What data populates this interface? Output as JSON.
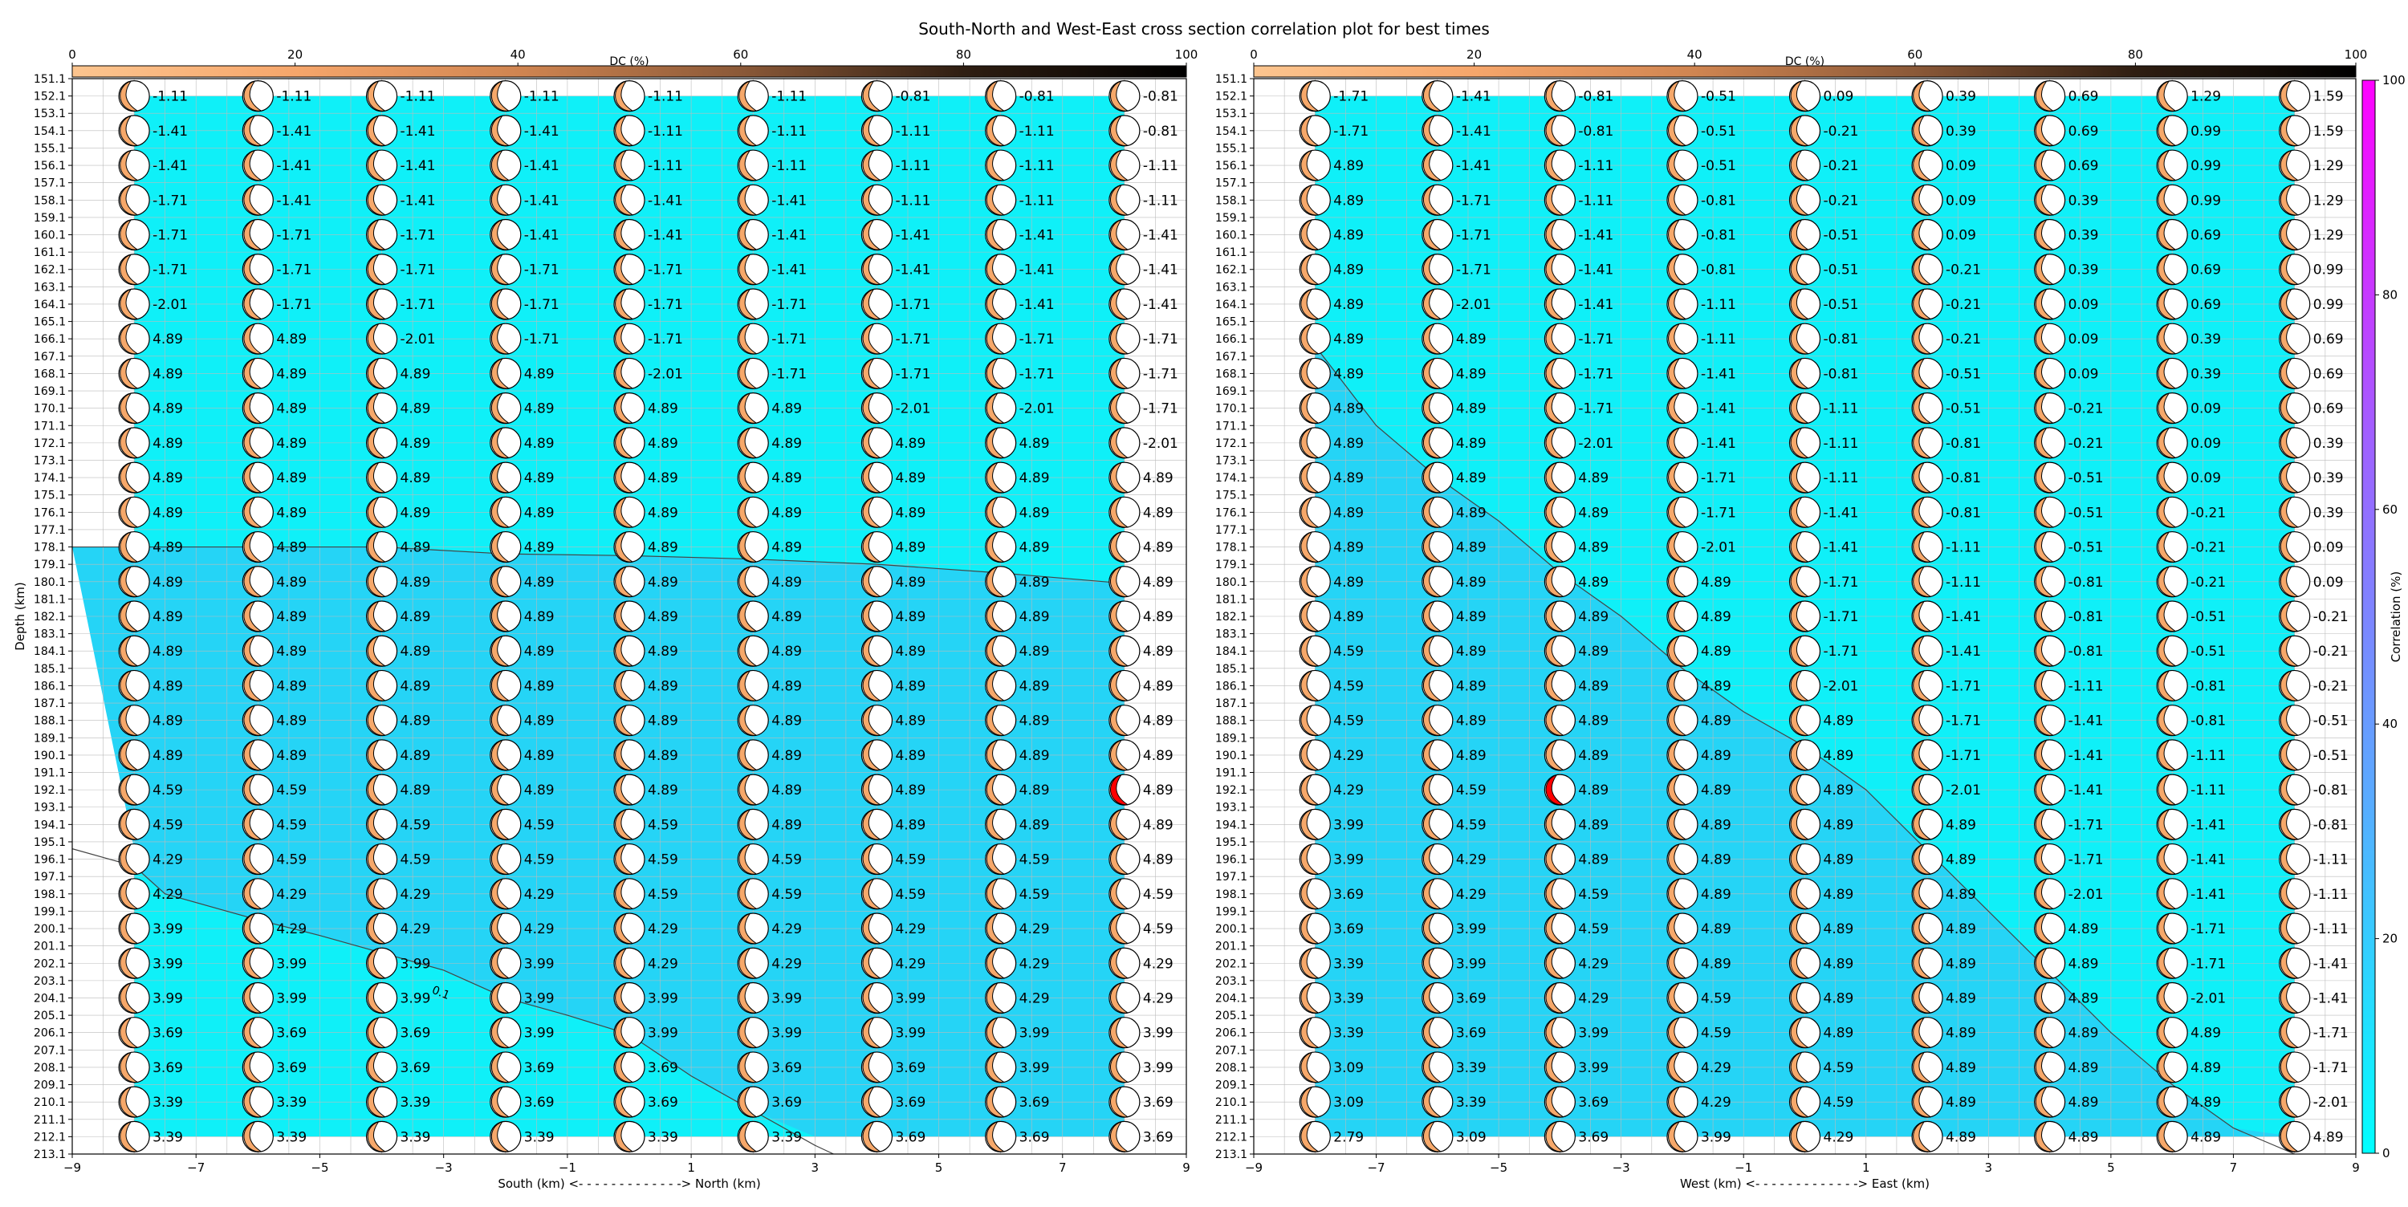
{
  "title": "South-North and West-East cross section correlation plot for best times",
  "colors": {
    "field": "#0ff0f8",
    "field_deep": "#25d4f6",
    "beachball_fill": "#f6a86a",
    "best": "#ff0000",
    "contour": "#444444",
    "grid": "#bbbbbb",
    "dc_bar": [
      "#fcc58f",
      "#f6a66b",
      "#d08551",
      "#8b5938",
      "#2f1e12",
      "#000000"
    ],
    "corr_bar": [
      "#00ffff",
      "#5aaaff",
      "#a060ff",
      "#ff00ff"
    ]
  },
  "dc_colorbar": {
    "label": "DC (%)",
    "ticks": [
      0,
      20,
      40,
      60,
      80,
      100
    ],
    "range": [
      0,
      100
    ]
  },
  "corr_colorbar": {
    "label": "Correlation (%)",
    "ticks": [
      0,
      20,
      40,
      60,
      80,
      100
    ],
    "range": [
      0,
      100
    ]
  },
  "chart_data": [
    {
      "type": "heatmap",
      "panel": "south-north",
      "xlabel": "South (km) <- - - - - - - - - - - - -> North (km)",
      "ylabel": "Depth (km)",
      "xlim": [
        -9,
        9
      ],
      "ylim": [
        213.1,
        151.1
      ],
      "xticks": [
        -9,
        -7,
        -5,
        -3,
        -1,
        1,
        3,
        5,
        7,
        9
      ],
      "yticks_start": 151.1,
      "yticks_step": 1,
      "yticks_count": 63,
      "depths": [
        152.1,
        154.1,
        156.1,
        158.1,
        160.1,
        162.1,
        164.1,
        166.1,
        168.1,
        170.1,
        172.1,
        174.1,
        176.1,
        178.1,
        180.1,
        182.1,
        184.1,
        186.1,
        188.1,
        190.1,
        192.1,
        194.1,
        196.1,
        198.1,
        200.1,
        202.1,
        204.1,
        206.1,
        208.1,
        210.1,
        212.1
      ],
      "positions": [
        -8,
        -6,
        -4,
        -2,
        0,
        2,
        4,
        6,
        8
      ],
      "best": {
        "x": 8,
        "depth": 192.1
      },
      "contour_label": "0.1",
      "contour": [
        [
          -9,
          178.1
        ],
        [
          -8,
          178.1
        ],
        [
          -6,
          178.1
        ],
        [
          -4,
          178.1
        ],
        [
          -2,
          178.5
        ],
        [
          0,
          178.6
        ],
        [
          2,
          178.8
        ],
        [
          4,
          179.1
        ],
        [
          6,
          179.6
        ],
        [
          8,
          180.2
        ]
      ],
      "contour2": [
        [
          -9,
          195.5
        ],
        [
          -8,
          196.5
        ],
        [
          -7.5,
          198.1
        ],
        [
          -6,
          199.6
        ],
        [
          -5,
          200.5
        ],
        [
          -4,
          201.5
        ],
        [
          -3,
          202.5
        ],
        [
          -2,
          204.1
        ],
        [
          -1,
          205.1
        ],
        [
          0,
          206.2
        ],
        [
          1,
          208.6
        ],
        [
          2,
          210.6
        ],
        [
          3,
          212.6
        ],
        [
          3.3,
          213.1
        ]
      ],
      "rows": [
        [
          "-1.11",
          "-1.11",
          "-1.11",
          "-1.11",
          "-1.11",
          "-1.11",
          "-0.81",
          "-0.81",
          "-0.81"
        ],
        [
          "-1.41",
          "-1.41",
          "-1.41",
          "-1.41",
          "-1.11",
          "-1.11",
          "-1.11",
          "-1.11",
          "-0.81"
        ],
        [
          "-1.41",
          "-1.41",
          "-1.41",
          "-1.41",
          "-1.11",
          "-1.11",
          "-1.11",
          "-1.11",
          "-1.11"
        ],
        [
          "-1.71",
          "-1.41",
          "-1.41",
          "-1.41",
          "-1.41",
          "-1.41",
          "-1.11",
          "-1.11",
          "-1.11"
        ],
        [
          "-1.71",
          "-1.71",
          "-1.71",
          "-1.41",
          "-1.41",
          "-1.41",
          "-1.41",
          "-1.41",
          "-1.41"
        ],
        [
          "-1.71",
          "-1.71",
          "-1.71",
          "-1.71",
          "-1.71",
          "-1.41",
          "-1.41",
          "-1.41",
          "-1.41"
        ],
        [
          "-2.01",
          "-1.71",
          "-1.71",
          "-1.71",
          "-1.71",
          "-1.71",
          "-1.71",
          "-1.41",
          "-1.41"
        ],
        [
          "4.89",
          "4.89",
          "-2.01",
          "-1.71",
          "-1.71",
          "-1.71",
          "-1.71",
          "-1.71",
          "-1.71"
        ],
        [
          "4.89",
          "4.89",
          "4.89",
          "4.89",
          "-2.01",
          "-1.71",
          "-1.71",
          "-1.71",
          "-1.71"
        ],
        [
          "4.89",
          "4.89",
          "4.89",
          "4.89",
          "4.89",
          "4.89",
          "-2.01",
          "-2.01",
          "-1.71"
        ],
        [
          "4.89",
          "4.89",
          "4.89",
          "4.89",
          "4.89",
          "4.89",
          "4.89",
          "4.89",
          "-2.01"
        ],
        [
          "4.89",
          "4.89",
          "4.89",
          "4.89",
          "4.89",
          "4.89",
          "4.89",
          "4.89",
          "4.89"
        ],
        [
          "4.89",
          "4.89",
          "4.89",
          "4.89",
          "4.89",
          "4.89",
          "4.89",
          "4.89",
          "4.89"
        ],
        [
          "4.89",
          "4.89",
          "4.89",
          "4.89",
          "4.89",
          "4.89",
          "4.89",
          "4.89",
          "4.89"
        ],
        [
          "4.89",
          "4.89",
          "4.89",
          "4.89",
          "4.89",
          "4.89",
          "4.89",
          "4.89",
          "4.89"
        ],
        [
          "4.89",
          "4.89",
          "4.89",
          "4.89",
          "4.89",
          "4.89",
          "4.89",
          "4.89",
          "4.89"
        ],
        [
          "4.89",
          "4.89",
          "4.89",
          "4.89",
          "4.89",
          "4.89",
          "4.89",
          "4.89",
          "4.89"
        ],
        [
          "4.89",
          "4.89",
          "4.89",
          "4.89",
          "4.89",
          "4.89",
          "4.89",
          "4.89",
          "4.89"
        ],
        [
          "4.89",
          "4.89",
          "4.89",
          "4.89",
          "4.89",
          "4.89",
          "4.89",
          "4.89",
          "4.89"
        ],
        [
          "4.89",
          "4.89",
          "4.89",
          "4.89",
          "4.89",
          "4.89",
          "4.89",
          "4.89",
          "4.89"
        ],
        [
          "4.59",
          "4.59",
          "4.89",
          "4.89",
          "4.89",
          "4.89",
          "4.89",
          "4.89",
          "4.89"
        ],
        [
          "4.59",
          "4.59",
          "4.59",
          "4.59",
          "4.59",
          "4.89",
          "4.89",
          "4.89",
          "4.89"
        ],
        [
          "4.29",
          "4.59",
          "4.59",
          "4.59",
          "4.59",
          "4.59",
          "4.59",
          "4.59",
          "4.89"
        ],
        [
          "4.29",
          "4.29",
          "4.29",
          "4.29",
          "4.59",
          "4.59",
          "4.59",
          "4.59",
          "4.59"
        ],
        [
          "3.99",
          "4.29",
          "4.29",
          "4.29",
          "4.29",
          "4.29",
          "4.29",
          "4.29",
          "4.59"
        ],
        [
          "3.99",
          "3.99",
          "3.99",
          "3.99",
          "4.29",
          "4.29",
          "4.29",
          "4.29",
          "4.29"
        ],
        [
          "3.99",
          "3.99",
          "3.99",
          "3.99",
          "3.99",
          "3.99",
          "3.99",
          "4.29",
          "4.29"
        ],
        [
          "3.69",
          "3.69",
          "3.69",
          "3.99",
          "3.99",
          "3.99",
          "3.99",
          "3.99",
          "3.99"
        ],
        [
          "3.69",
          "3.69",
          "3.69",
          "3.69",
          "3.69",
          "3.69",
          "3.69",
          "3.99",
          "3.99"
        ],
        [
          "3.39",
          "3.39",
          "3.39",
          "3.69",
          "3.69",
          "3.69",
          "3.69",
          "3.69",
          "3.69"
        ],
        [
          "3.39",
          "3.39",
          "3.39",
          "3.39",
          "3.39",
          "3.39",
          "3.69",
          "3.69",
          "3.69"
        ]
      ]
    },
    {
      "type": "heatmap",
      "panel": "west-east",
      "xlabel": "West (km) <- - - - - - - - - - - - -> East (km)",
      "ylabel": "",
      "xlim": [
        -9,
        9
      ],
      "ylim": [
        213.1,
        151.1
      ],
      "xticks": [
        -9,
        -7,
        -5,
        -3,
        -1,
        1,
        3,
        5,
        7,
        9
      ],
      "yticks_start": 151.1,
      "yticks_step": 1,
      "yticks_count": 63,
      "depths": [
        152.1,
        154.1,
        156.1,
        158.1,
        160.1,
        162.1,
        164.1,
        166.1,
        168.1,
        170.1,
        172.1,
        174.1,
        176.1,
        178.1,
        180.1,
        182.1,
        184.1,
        186.1,
        188.1,
        190.1,
        192.1,
        194.1,
        196.1,
        198.1,
        200.1,
        202.1,
        204.1,
        206.1,
        208.1,
        210.1,
        212.1
      ],
      "positions": [
        -8,
        -6,
        -4,
        -2,
        0,
        2,
        4,
        6,
        8
      ],
      "best": {
        "x": -4,
        "depth": 192.1
      },
      "contour_label": "",
      "contour": [
        [
          -8,
          166.5
        ],
        [
          -7,
          171.1
        ],
        [
          -6,
          174.1
        ],
        [
          -5,
          176.6
        ],
        [
          -4,
          179.6
        ],
        [
          -3,
          182.1
        ],
        [
          -2,
          185.1
        ],
        [
          -1,
          187.6
        ],
        [
          0,
          189.6
        ],
        [
          1,
          192.1
        ],
        [
          2,
          195.6
        ],
        [
          3,
          199.1
        ],
        [
          4,
          202.6
        ],
        [
          5,
          206.1
        ],
        [
          6,
          209.1
        ],
        [
          7,
          211.6
        ],
        [
          8,
          213.1
        ]
      ],
      "contour2": [],
      "rows": [
        [
          "-1.71",
          "-1.41",
          "-0.81",
          "-0.51",
          "0.09",
          "0.39",
          "0.69",
          "1.29",
          "1.59"
        ],
        [
          "-1.71",
          "-1.41",
          "-0.81",
          "-0.51",
          "-0.21",
          "0.39",
          "0.69",
          "0.99",
          "1.59"
        ],
        [
          "4.89",
          "-1.41",
          "-1.11",
          "-0.51",
          "-0.21",
          "0.09",
          "0.69",
          "0.99",
          "1.29"
        ],
        [
          "4.89",
          "-1.71",
          "-1.11",
          "-0.81",
          "-0.21",
          "0.09",
          "0.39",
          "0.99",
          "1.29"
        ],
        [
          "4.89",
          "-1.71",
          "-1.41",
          "-0.81",
          "-0.51",
          "0.09",
          "0.39",
          "0.69",
          "1.29"
        ],
        [
          "4.89",
          "-1.71",
          "-1.41",
          "-0.81",
          "-0.51",
          "-0.21",
          "0.39",
          "0.69",
          "0.99"
        ],
        [
          "4.89",
          "-2.01",
          "-1.41",
          "-1.11",
          "-0.51",
          "-0.21",
          "0.09",
          "0.69",
          "0.99"
        ],
        [
          "4.89",
          "4.89",
          "-1.71",
          "-1.11",
          "-0.81",
          "-0.21",
          "0.09",
          "0.39",
          "0.69"
        ],
        [
          "4.89",
          "4.89",
          "-1.71",
          "-1.41",
          "-0.81",
          "-0.51",
          "0.09",
          "0.39",
          "0.69"
        ],
        [
          "4.89",
          "4.89",
          "-1.71",
          "-1.41",
          "-1.11",
          "-0.51",
          "-0.21",
          "0.09",
          "0.69"
        ],
        [
          "4.89",
          "4.89",
          "-2.01",
          "-1.41",
          "-1.11",
          "-0.81",
          "-0.21",
          "0.09",
          "0.39"
        ],
        [
          "4.89",
          "4.89",
          "4.89",
          "-1.71",
          "-1.11",
          "-0.81",
          "-0.51",
          "0.09",
          "0.39"
        ],
        [
          "4.89",
          "4.89",
          "4.89",
          "-1.71",
          "-1.41",
          "-0.81",
          "-0.51",
          "-0.21",
          "0.39"
        ],
        [
          "4.89",
          "4.89",
          "4.89",
          "-2.01",
          "-1.41",
          "-1.11",
          "-0.51",
          "-0.21",
          "0.09"
        ],
        [
          "4.89",
          "4.89",
          "4.89",
          "4.89",
          "-1.71",
          "-1.11",
          "-0.81",
          "-0.21",
          "0.09"
        ],
        [
          "4.89",
          "4.89",
          "4.89",
          "4.89",
          "-1.71",
          "-1.41",
          "-0.81",
          "-0.51",
          "-0.21"
        ],
        [
          "4.59",
          "4.89",
          "4.89",
          "4.89",
          "-1.71",
          "-1.41",
          "-0.81",
          "-0.51",
          "-0.21"
        ],
        [
          "4.59",
          "4.89",
          "4.89",
          "4.89",
          "-2.01",
          "-1.71",
          "-1.11",
          "-0.81",
          "-0.21"
        ],
        [
          "4.59",
          "4.89",
          "4.89",
          "4.89",
          "4.89",
          "-1.71",
          "-1.41",
          "-0.81",
          "-0.51"
        ],
        [
          "4.29",
          "4.89",
          "4.89",
          "4.89",
          "4.89",
          "-1.71",
          "-1.41",
          "-1.11",
          "-0.51"
        ],
        [
          "4.29",
          "4.59",
          "4.89",
          "4.89",
          "4.89",
          "-2.01",
          "-1.41",
          "-1.11",
          "-0.81"
        ],
        [
          "3.99",
          "4.59",
          "4.89",
          "4.89",
          "4.89",
          "4.89",
          "-1.71",
          "-1.41",
          "-0.81"
        ],
        [
          "3.99",
          "4.29",
          "4.89",
          "4.89",
          "4.89",
          "4.89",
          "-1.71",
          "-1.41",
          "-1.11"
        ],
        [
          "3.69",
          "4.29",
          "4.59",
          "4.89",
          "4.89",
          "4.89",
          "-2.01",
          "-1.41",
          "-1.11"
        ],
        [
          "3.69",
          "3.99",
          "4.59",
          "4.89",
          "4.89",
          "4.89",
          "4.89",
          "-1.71",
          "-1.11"
        ],
        [
          "3.39",
          "3.99",
          "4.29",
          "4.89",
          "4.89",
          "4.89",
          "4.89",
          "-1.71",
          "-1.41"
        ],
        [
          "3.39",
          "3.69",
          "4.29",
          "4.59",
          "4.89",
          "4.89",
          "4.89",
          "-2.01",
          "-1.41"
        ],
        [
          "3.39",
          "3.69",
          "3.99",
          "4.59",
          "4.89",
          "4.89",
          "4.89",
          "4.89",
          "-1.71"
        ],
        [
          "3.09",
          "3.39",
          "3.99",
          "4.29",
          "4.59",
          "4.89",
          "4.89",
          "4.89",
          "-1.71"
        ],
        [
          "3.09",
          "3.39",
          "3.69",
          "4.29",
          "4.59",
          "4.89",
          "4.89",
          "4.89",
          "-2.01"
        ],
        [
          "2.79",
          "3.09",
          "3.69",
          "3.99",
          "4.29",
          "4.89",
          "4.89",
          "4.89",
          "4.89"
        ]
      ]
    }
  ]
}
